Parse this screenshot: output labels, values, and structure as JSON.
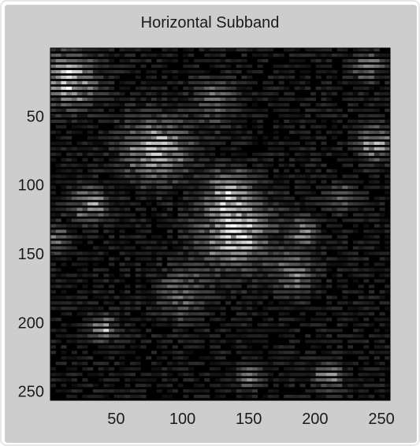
{
  "chart_data": {
    "type": "heatmap",
    "title": "Horizontal Subband",
    "xlabel": "",
    "ylabel": "",
    "xlim": [
      0.5,
      256.5
    ],
    "ylim": [
      0.5,
      256.5
    ],
    "y_direction": "reverse",
    "colormap": "gray",
    "grid": false,
    "x_ticks": [
      50,
      100,
      150,
      200,
      250
    ],
    "y_ticks": [
      50,
      100,
      150,
      200,
      250
    ],
    "x_tick_labels": [
      "50",
      "100",
      "150",
      "200",
      "250"
    ],
    "y_tick_labels": [
      "50",
      "100",
      "150",
      "200",
      "250"
    ]
  },
  "colors": {
    "panel_background": "#cdcdcd",
    "axes_background": "#000000",
    "text": "#1a1a1a"
  }
}
